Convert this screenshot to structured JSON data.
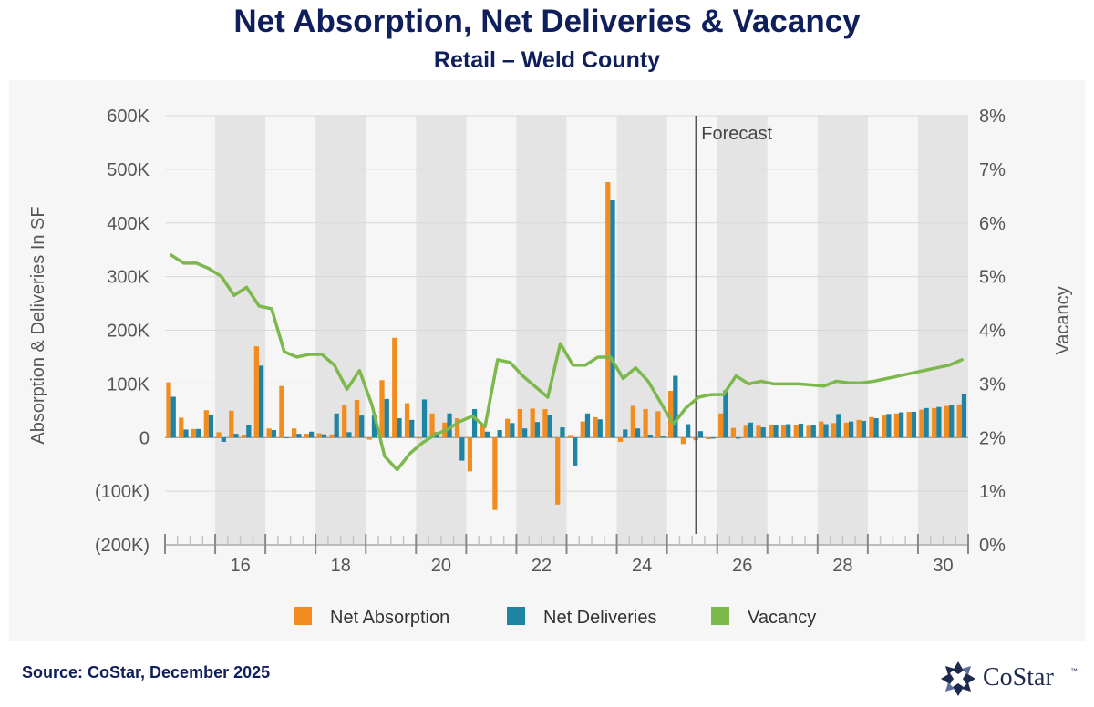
{
  "title": "Net Absorption, Net Deliveries & Vacancy",
  "subtitle": "Retail – Weld County",
  "source": "Source: CoStar, December 2025",
  "logo_text": "CoStar",
  "logo_tm": "™",
  "chart_data": {
    "type": "bar+line",
    "y_left_label": "Absorption & Deliveries In SF",
    "y_right_label": "Vacancy",
    "y_left_range": [
      -200000,
      600000
    ],
    "y_right_range": [
      0,
      8
    ],
    "y_left_ticks": [
      "600K",
      "500K",
      "400K",
      "300K",
      "200K",
      "100K",
      "0",
      "(100K)",
      "(200K)"
    ],
    "y_right_ticks": [
      "8%",
      "7%",
      "6%",
      "5%",
      "4%",
      "3%",
      "2%",
      "1%",
      "0%"
    ],
    "x_labels": [
      "16",
      "18",
      "20",
      "22",
      "24",
      "26",
      "28",
      "30"
    ],
    "forecast_label": "Forecast",
    "forecast_after_index": 42,
    "quarters": [
      "2015Q1",
      "2015Q2",
      "2015Q3",
      "2015Q4",
      "2016Q1",
      "2016Q2",
      "2016Q3",
      "2016Q4",
      "2017Q1",
      "2017Q2",
      "2017Q3",
      "2017Q4",
      "2018Q1",
      "2018Q2",
      "2018Q3",
      "2018Q4",
      "2019Q1",
      "2019Q2",
      "2019Q3",
      "2019Q4",
      "2020Q1",
      "2020Q2",
      "2020Q3",
      "2020Q4",
      "2021Q1",
      "2021Q2",
      "2021Q3",
      "2021Q4",
      "2022Q1",
      "2022Q2",
      "2022Q3",
      "2022Q4",
      "2023Q1",
      "2023Q2",
      "2023Q3",
      "2023Q4",
      "2024Q1",
      "2024Q2",
      "2024Q3",
      "2024Q4",
      "2025Q1",
      "2025Q2",
      "2025Q3",
      "2025Q4",
      "2026Q1",
      "2026Q2",
      "2026Q3",
      "2026Q4",
      "2027Q1",
      "2027Q2",
      "2027Q3",
      "2027Q4",
      "2028Q1",
      "2028Q2",
      "2028Q3",
      "2028Q4",
      "2029Q1",
      "2029Q2",
      "2029Q3",
      "2029Q4",
      "2030Q1",
      "2030Q2",
      "2030Q3",
      "2030Q4"
    ],
    "series": [
      {
        "name": "Net Absorption",
        "color": "#f28c1e",
        "values": [
          103000,
          37000,
          16000,
          51000,
          10000,
          50000,
          5000,
          170000,
          17000,
          96000,
          17000,
          7000,
          8000,
          6000,
          60000,
          70000,
          -4000,
          107000,
          186000,
          64000,
          -2000,
          45000,
          28000,
          36000,
          -63000,
          25000,
          -135000,
          35000,
          53000,
          54000,
          53000,
          -125000,
          3000,
          30000,
          38000,
          476000,
          -8000,
          59000,
          53000,
          49000,
          87000,
          -12000,
          -5000,
          -3000,
          45000,
          18000,
          22000,
          22000,
          24000,
          24000,
          23000,
          22000,
          30000,
          27000,
          28000,
          33000,
          38000,
          41000,
          45000,
          48000,
          52000,
          55000,
          59000,
          62000
        ]
      },
      {
        "name": "Net Deliveries",
        "color": "#1f83a3",
        "values": [
          76000,
          15000,
          16000,
          43000,
          -8000,
          7000,
          23000,
          134000,
          14000,
          0,
          7000,
          11000,
          6000,
          45000,
          10000,
          41000,
          41000,
          72000,
          36000,
          33000,
          71000,
          10000,
          45000,
          -43000,
          53000,
          11000,
          14000,
          27000,
          17000,
          29000,
          42000,
          19000,
          -52000,
          45000,
          34000,
          442000,
          15000,
          17000,
          5000,
          2000,
          115000,
          25000,
          12000,
          -2000,
          88000,
          -2000,
          28000,
          19000,
          24000,
          25000,
          26000,
          23000,
          25000,
          44000,
          30000,
          31000,
          36000,
          44000,
          47000,
          48000,
          55000,
          57000,
          61000,
          82000
        ]
      }
    ],
    "line": {
      "name": "Vacancy",
      "color": "#7db84d",
      "values": [
        5.4,
        5.25,
        5.25,
        5.15,
        5.0,
        4.65,
        4.8,
        4.45,
        4.4,
        3.6,
        3.5,
        3.55,
        3.55,
        3.35,
        2.9,
        3.25,
        2.6,
        1.65,
        1.4,
        1.7,
        1.9,
        2.05,
        2.15,
        2.3,
        2.4,
        2.2,
        3.45,
        3.4,
        3.15,
        2.95,
        2.75,
        3.75,
        3.35,
        3.35,
        3.5,
        3.5,
        3.1,
        3.3,
        3.05,
        2.65,
        2.25,
        2.55,
        2.75,
        2.8,
        2.8,
        3.15,
        3.0,
        3.05,
        3.0,
        3.0,
        3.0,
        2.98,
        2.96,
        3.05,
        3.02,
        3.02,
        3.05,
        3.1,
        3.15,
        3.2,
        3.25,
        3.3,
        3.35,
        3.45
      ]
    }
  }
}
